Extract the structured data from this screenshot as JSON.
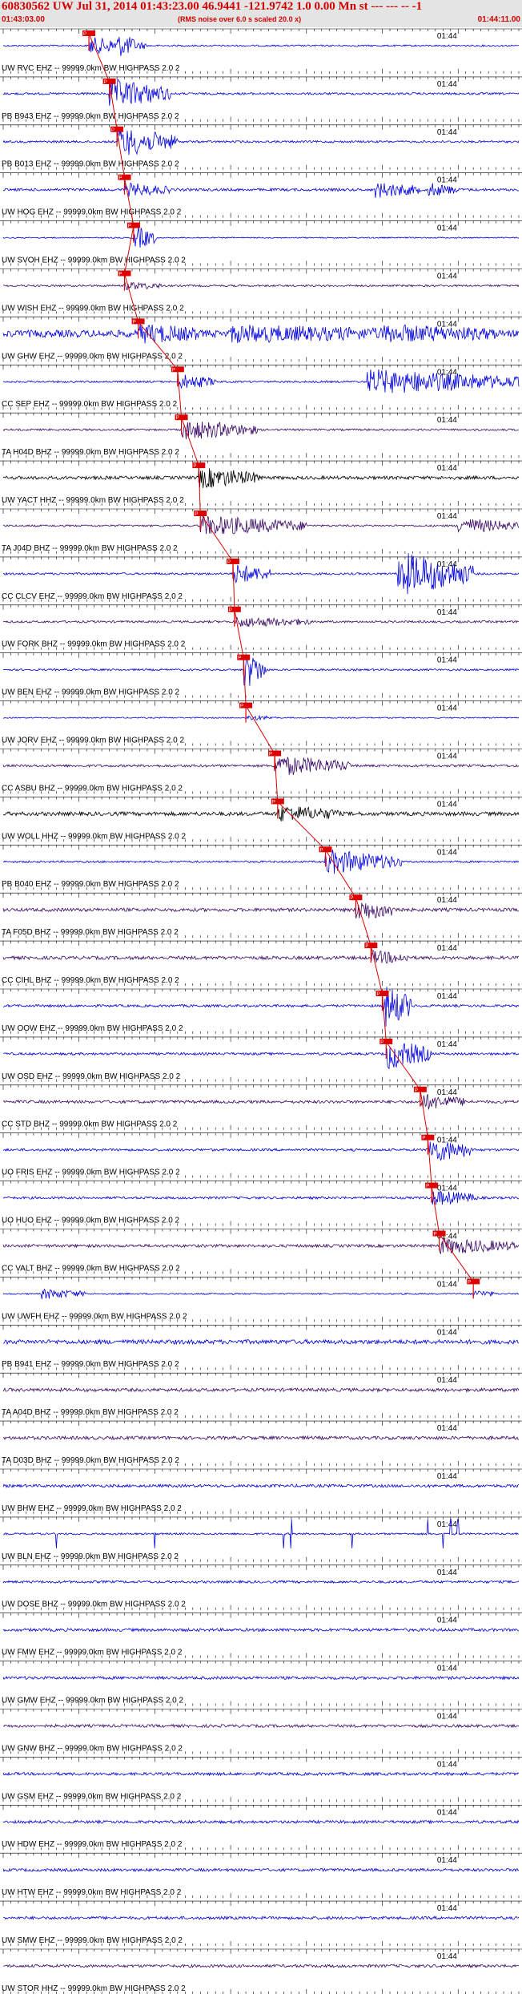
{
  "header": {
    "title": "60830562 UW Jul 31, 2014 01:43:23.00   46.9441 -121.9742  1.0 0.00 Mn st --- --- --  -1",
    "start_time": "01:43:03.00",
    "center_note": "(RMS noise over 6.0 s scaled 20.0 x)",
    "end_time": "01:44:11.00"
  },
  "colors": {
    "blue": "#0000dd",
    "purple": "#3a0a66",
    "black": "#000000",
    "pick": "#dd0000",
    "header_text": "#d00000",
    "header_bg": "#e4e4e4"
  },
  "chart_data": {
    "type": "line",
    "x_range_seconds": [
      0,
      68
    ],
    "tick_label": "01:44",
    "label_suffix": " -- 99999.0km BW  HIGHPASS  2.0  2",
    "traces": [
      {
        "station": "UW RVC EHZ",
        "color": "blue",
        "amp": 0.35,
        "pick_s": 11.3,
        "burst": [
          {
            "at": 11.3,
            "amp": 3.5,
            "dur": 6
          },
          {
            "at": 15,
            "amp": 2.5,
            "dur": 4
          }
        ]
      },
      {
        "station": "PB B943 EHZ",
        "color": "blue",
        "amp": 0.45,
        "pick_s": 14.0,
        "burst": [
          {
            "at": 14.0,
            "amp": 6,
            "dur": 8
          }
        ]
      },
      {
        "station": "PB B013 EHZ",
        "color": "blue",
        "amp": 0.45,
        "pick_s": 15.0,
        "burst": [
          {
            "at": 15.0,
            "amp": 6,
            "dur": 8
          }
        ]
      },
      {
        "station": "UW HOG EHZ",
        "color": "blue",
        "amp": 0.55,
        "pick_s": 16.0,
        "burst": [
          {
            "at": 16.0,
            "amp": 2.5,
            "dur": 6
          },
          {
            "at": 49,
            "amp": 3,
            "dur": 6
          },
          {
            "at": 56,
            "amp": 2.5,
            "dur": 4
          }
        ]
      },
      {
        "station": "UW SVOH EHZ",
        "color": "blue",
        "amp": 0.25,
        "pick_s": 17.2,
        "burst": [
          {
            "at": 17.2,
            "amp": 5,
            "dur": 3
          }
        ]
      },
      {
        "station": "UW WISH EHZ",
        "color": "purple",
        "amp": 0.4,
        "pick_s": 16.0,
        "burst": [
          {
            "at": 16.0,
            "amp": 1.5,
            "dur": 5
          }
        ]
      },
      {
        "station": "UW GHW EHZ",
        "color": "blue",
        "amp": 1.5,
        "pick_s": 17.8,
        "burst": [
          {
            "at": 17.8,
            "amp": 3,
            "dur": 8
          },
          {
            "at": 30,
            "amp": 2.5,
            "dur": 20
          },
          {
            "at": 50,
            "amp": 2.5,
            "dur": 15
          }
        ]
      },
      {
        "station": "CC SEP EHZ",
        "color": "blue",
        "amp": 0.4,
        "pick_s": 23.0,
        "burst": [
          {
            "at": 23.0,
            "amp": 3,
            "dur": 5
          },
          {
            "at": 48,
            "amp": 5,
            "dur": 20
          }
        ]
      },
      {
        "station": "TA H04D BHZ",
        "color": "purple",
        "amp": 0.4,
        "pick_s": 23.5,
        "burst": [
          {
            "at": 23.5,
            "amp": 4,
            "dur": 10
          }
        ]
      },
      {
        "station": "UW YACT HHZ",
        "color": "black",
        "amp": 0.7,
        "pick_s": 25.8,
        "burst": [
          {
            "at": 25.8,
            "amp": 4,
            "dur": 8
          }
        ]
      },
      {
        "station": "TA J04D BHZ",
        "color": "purple",
        "amp": 0.4,
        "pick_s": 26.0,
        "burst": [
          {
            "at": 26.0,
            "amp": 4,
            "dur": 14
          },
          {
            "at": 60,
            "amp": 3,
            "dur": 8
          }
        ]
      },
      {
        "station": "CC CLCV EHZ",
        "color": "blue",
        "amp": 0.45,
        "pick_s": 30.3,
        "burst": [
          {
            "at": 30.3,
            "amp": 4,
            "dur": 5
          },
          {
            "at": 52,
            "amp": 9,
            "dur": 10
          }
        ]
      },
      {
        "station": "UW FORK BHZ",
        "color": "purple",
        "amp": 0.45,
        "pick_s": 30.5,
        "burst": [
          {
            "at": 30.5,
            "amp": 2,
            "dur": 10
          }
        ]
      },
      {
        "station": "UW BEN EHZ",
        "color": "blue",
        "amp": 0.4,
        "pick_s": 31.7,
        "burst": [
          {
            "at": 31.7,
            "amp": 8,
            "dur": 3
          }
        ]
      },
      {
        "station": "UW JORV EHZ",
        "color": "blue",
        "amp": 0.25,
        "pick_s": 32.0,
        "burst": [
          {
            "at": 32.0,
            "amp": 1,
            "dur": 4
          }
        ]
      },
      {
        "station": "CC ASBU BHZ",
        "color": "purple",
        "amp": 0.5,
        "pick_s": 35.8,
        "burst": [
          {
            "at": 35.8,
            "amp": 4,
            "dur": 10
          }
        ]
      },
      {
        "station": "UW WOLL HHZ",
        "color": "black",
        "amp": 0.8,
        "pick_s": 36.2,
        "burst": [
          {
            "at": 36.2,
            "amp": 3,
            "dur": 8
          }
        ]
      },
      {
        "station": "PB B040 EHZ",
        "color": "blue",
        "amp": 0.4,
        "pick_s": 42.5,
        "burst": [
          {
            "at": 42.5,
            "amp": 5,
            "dur": 10
          }
        ]
      },
      {
        "station": "TA F05D BHZ",
        "color": "purple",
        "amp": 0.7,
        "pick_s": 46.5,
        "burst": [
          {
            "at": 46.5,
            "amp": 4,
            "dur": 6
          }
        ]
      },
      {
        "station": "CC CIHL BHZ",
        "color": "purple",
        "amp": 0.7,
        "pick_s": 48.5,
        "burst": [
          {
            "at": 48.5,
            "amp": 2.5,
            "dur": 5
          }
        ]
      },
      {
        "station": "UW OOW EHZ",
        "color": "blue",
        "amp": 0.5,
        "pick_s": 50.0,
        "burst": [
          {
            "at": 50.0,
            "amp": 9,
            "dur": 4
          }
        ]
      },
      {
        "station": "UW OSD EHZ",
        "color": "blue",
        "amp": 0.5,
        "pick_s": 50.5,
        "burst": [
          {
            "at": 50.5,
            "amp": 6,
            "dur": 6
          }
        ]
      },
      {
        "station": "CC STD BHZ",
        "color": "purple",
        "amp": 0.6,
        "pick_s": 55.0,
        "burst": [
          {
            "at": 55.0,
            "amp": 3,
            "dur": 6
          }
        ]
      },
      {
        "station": "UO FRIS EHZ",
        "color": "blue",
        "amp": 0.5,
        "pick_s": 56.0,
        "burst": [
          {
            "at": 56.0,
            "amp": 5,
            "dur": 6
          }
        ]
      },
      {
        "station": "UO HUO EHZ",
        "color": "blue",
        "amp": 0.5,
        "pick_s": 56.5,
        "burst": [
          {
            "at": 56.5,
            "amp": 3,
            "dur": 6
          }
        ]
      },
      {
        "station": "CC VALT BHZ",
        "color": "purple",
        "amp": 0.6,
        "pick_s": 57.5,
        "burst": [
          {
            "at": 57.5,
            "amp": 3,
            "dur": 10
          }
        ]
      },
      {
        "station": "UW UWFH EHZ",
        "color": "blue",
        "amp": 0.3,
        "pick_s": 62.0,
        "burst": [
          {
            "at": 5,
            "amp": 2,
            "dur": 6
          },
          {
            "at": 62.0,
            "amp": 1.5,
            "dur": 3
          }
        ]
      },
      {
        "station": "PB B941 EHZ",
        "color": "blue",
        "amp": 0.9,
        "pick_s": null,
        "burst": []
      },
      {
        "station": "TA A04D BHZ",
        "color": "purple",
        "amp": 0.7,
        "pick_s": null,
        "burst": []
      },
      {
        "station": "TA D03D BHZ",
        "color": "purple",
        "amp": 0.7,
        "pick_s": null,
        "burst": []
      },
      {
        "station": "UW BHW EHZ",
        "color": "blue",
        "amp": 0.6,
        "pick_s": null,
        "burst": []
      },
      {
        "station": "UW BLN EHZ",
        "color": "blue",
        "amp": 0.4,
        "pick_s": null,
        "spikes": [
          7,
          20,
          37,
          38,
          46,
          56,
          58,
          59,
          60
        ],
        "burst": []
      },
      {
        "station": "UW DOSE BHZ",
        "color": "blue",
        "amp": 0.5,
        "pick_s": null,
        "burst": []
      },
      {
        "station": "UW FMW EHZ",
        "color": "blue",
        "amp": 0.6,
        "pick_s": null,
        "burst": []
      },
      {
        "station": "UW GMW EHZ",
        "color": "blue",
        "amp": 0.6,
        "pick_s": null,
        "burst": []
      },
      {
        "station": "UW GNW BHZ",
        "color": "purple",
        "amp": 0.6,
        "pick_s": null,
        "burst": []
      },
      {
        "station": "UW GSM EHZ",
        "color": "blue",
        "amp": 0.6,
        "pick_s": null,
        "burst": []
      },
      {
        "station": "UW HDW EHZ",
        "color": "blue",
        "amp": 0.6,
        "pick_s": null,
        "burst": []
      },
      {
        "station": "UW HTW EHZ",
        "color": "blue",
        "amp": 0.6,
        "pick_s": null,
        "burst": []
      },
      {
        "station": "UW SMW EHZ",
        "color": "blue",
        "amp": 0.6,
        "pick_s": null,
        "burst": []
      },
      {
        "station": "UW STOR HHZ",
        "color": "purple",
        "amp": 0.6,
        "pick_s": null,
        "burst": []
      }
    ]
  }
}
